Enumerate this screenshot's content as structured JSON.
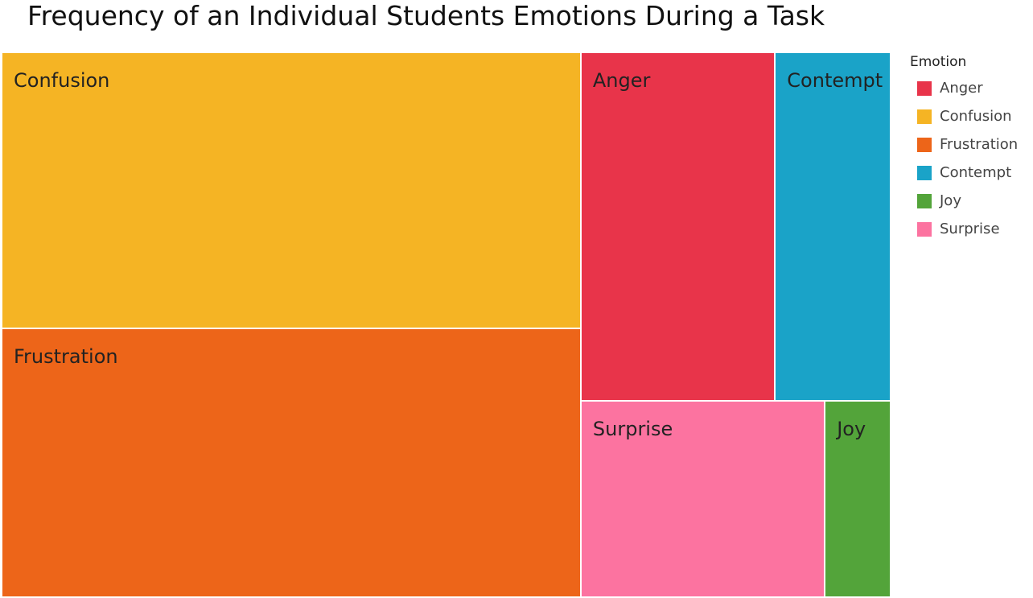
{
  "chart_data": {
    "type": "treemap",
    "title": "Frequency of an Individual Students Emotions During a Task",
    "legend_title": "Emotion",
    "legend_position": "right",
    "categories": [
      "Anger",
      "Confusion",
      "Frustration",
      "Contempt",
      "Joy",
      "Surprise"
    ],
    "values": [
      0.126,
      0.297,
      0.29,
      0.075,
      0.024,
      0.089
    ],
    "colors": {
      "Anger": "#e8344a",
      "Confusion": "#f5b424",
      "Frustration": "#ed6519",
      "Contempt": "#1aa3c8",
      "Joy": "#53a43a",
      "Surprise": "#fc73a0"
    },
    "legend": [
      {
        "name": "Anger",
        "color": "#e8344a"
      },
      {
        "name": "Confusion",
        "color": "#f5b424"
      },
      {
        "name": "Frustration",
        "color": "#ed6519"
      },
      {
        "name": "Contempt",
        "color": "#1aa3c8"
      },
      {
        "name": "Joy",
        "color": "#53a43a"
      },
      {
        "name": "Surprise",
        "color": "#fc73a0"
      }
    ]
  }
}
